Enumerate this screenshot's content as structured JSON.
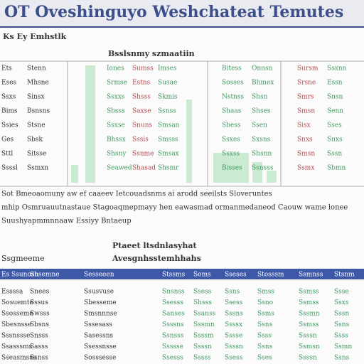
{
  "header": {
    "title": "OT Oveshinguyo Weshchateat Temutes"
  },
  "section1": {
    "caption": "Ks Ey Emhstlk"
  },
  "table1": {
    "title": "Bsslsnmy szmaatiin",
    "rows": [
      [
        "Ets",
        "Stenn",
        "Iones",
        "Sumss",
        "Imses",
        "Bitess",
        "Onnsn",
        "Sursm",
        "Ssxnn"
      ],
      [
        "Eses",
        "Mhsne",
        "Srmse",
        "Estns",
        "Susae",
        "Sosses",
        "Bhmex",
        "Srsne",
        "Essn"
      ],
      [
        "Ssxs",
        "Sinsx",
        "Ssxxs",
        "Shsss",
        "Skmis",
        "Nstnss",
        "Shsn",
        "Smrs",
        "Snsn"
      ],
      [
        "Bims",
        "Bsnsns",
        "Sbsss",
        "Saxse",
        "Ssnss",
        "Shaas",
        "Shses",
        "Smsn",
        "Senn"
      ],
      [
        "Ssies",
        "Stsne",
        "Ssxse",
        "Snuns",
        "Smsan",
        "Sbess",
        "Ssen",
        "Sisx",
        "Sses"
      ],
      [
        "Ges",
        "Sbsk",
        "Bhssx",
        "Sssis",
        "Smsss",
        "Ssxes",
        "Sxsns",
        "Snxs",
        "Snxs"
      ],
      [
        "Sttl",
        "Sitsse",
        "Shsny",
        "Ssnme",
        "Smsax",
        "Ssxss",
        "Shsnn",
        "Smsn",
        "Sssn"
      ],
      [
        "Ssssl",
        "Ssmxn",
        "Seawed",
        "Shasad",
        "Shsmr",
        "Bisses",
        "Ssnsss",
        "Ssmx",
        "Sbmn"
      ]
    ]
  },
  "paragraph": {
    "lines": [
      "Sot Bmeoaomuny aw ef caaeev Ietcouadsnms ai arodd seeilsts Sloveruntes",
      "mhip Osmruauutnastaue Stagoaqmepmayy hen eawasmad ormanmedaneod Caouw wame lonee",
      "Suushyapmmnnaaw Essiyy Bntaeup"
    ]
  },
  "table2": {
    "title": "Ptaeet ltsdnlasyhat",
    "subtitle": "Avesgnhsstemhhahs",
    "label": "Ssgmeeme",
    "header": [
      "Es Ssunosn",
      "Shsemne",
      "Sesseeen",
      "Stssms",
      "Soms",
      "Sseses",
      "Stosssm",
      "Ssmnss",
      "Stsnm"
    ],
    "rows": [
      [
        "Essssa",
        "Snees",
        "Ssusvuse",
        "Snsnss",
        "Ssess",
        "Ssns",
        "Smss",
        "Ssmss",
        "Ssse"
      ],
      [
        "Sosuemte",
        "Sssus",
        "Sbesseme",
        "Ssesss",
        "Shsss",
        "Ssess",
        "Ssno",
        "Ssmss",
        "Ssxs"
      ],
      [
        "Ssosseme",
        "Swsss",
        "Smsnnnse",
        "Sanses",
        "Ssanss",
        "Sssns",
        "Ssms",
        "Sssmn",
        "Sssn"
      ],
      [
        "Sbesnsse",
        "Sbsns",
        "Sssesass",
        "Ssssns",
        "Sssmn",
        "Ssssx",
        "Ssns",
        "Ssmss",
        "Ssns"
      ],
      [
        "Sssnssse",
        "Snsss",
        "Sasessns",
        "Ssnsss",
        "Ssssm",
        "Sssse",
        "Ssss",
        "Ssssn",
        "Ssss"
      ],
      [
        "Ssasssms",
        "Sasss",
        "Ssessnsse",
        "Ssssse",
        "Ssssn",
        "Ssssn",
        "Ssns",
        "Ssmsn",
        "Ssmn"
      ],
      [
        "Sseasmsss",
        "Ssnss",
        "Sosssesse",
        "Ssesss",
        "Sssss",
        "Ssess",
        "Sses",
        "Ssssn",
        "Ssns"
      ]
    ]
  }
}
